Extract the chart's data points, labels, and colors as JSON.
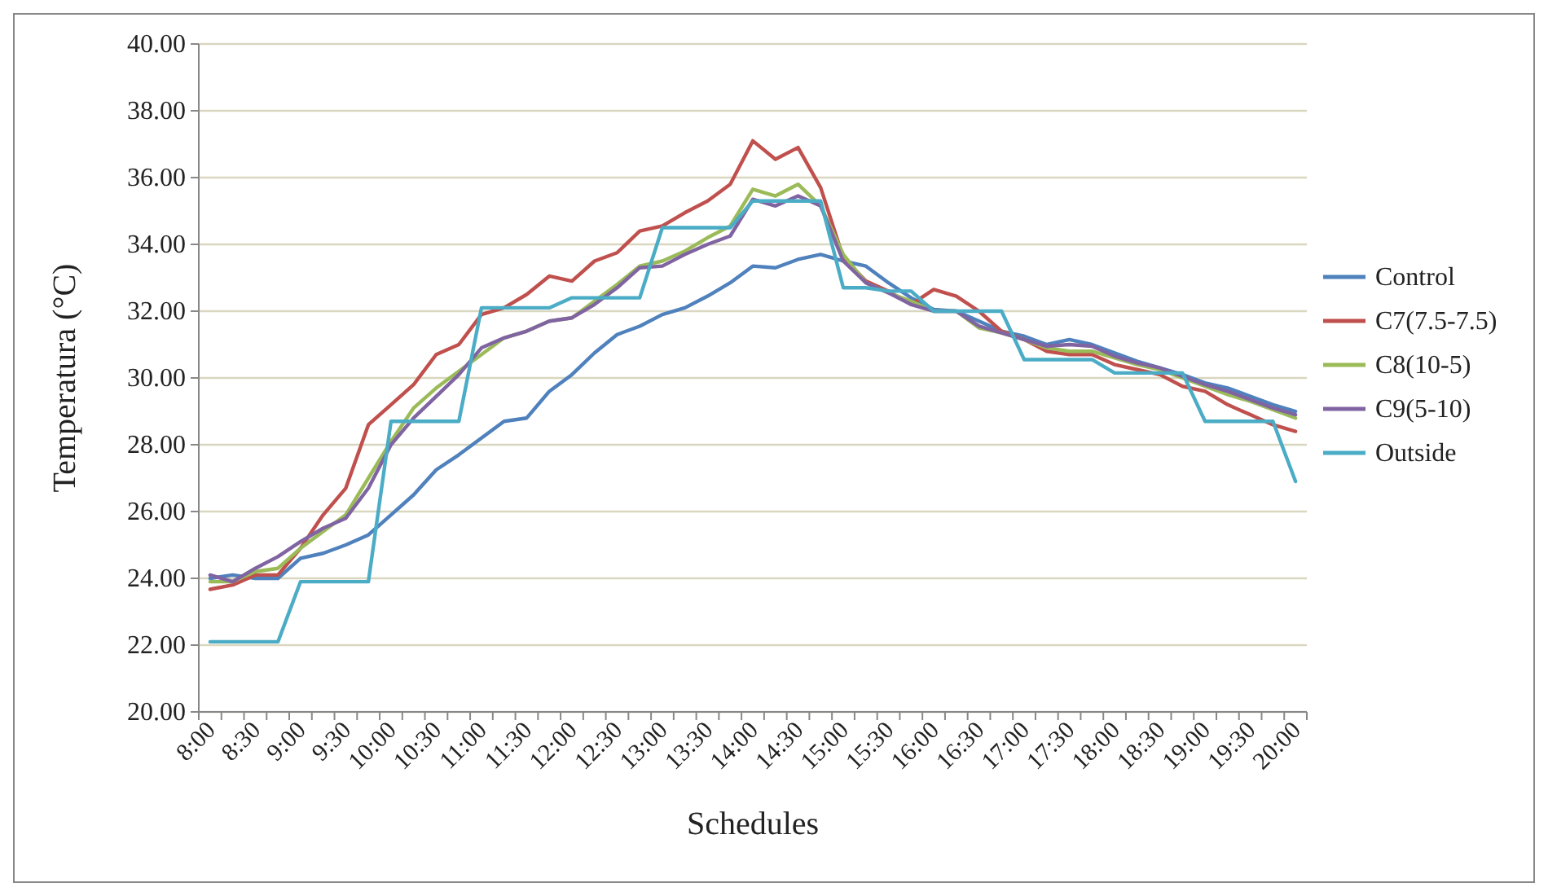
{
  "chart_data": {
    "type": "line",
    "xlabel": "Schedules",
    "ylabel": "Temperatura (°C)",
    "categories": [
      "8:00",
      null,
      "8:30",
      null,
      "9:00",
      null,
      "9:30",
      null,
      "10:00",
      null,
      "10:30",
      null,
      "11:00",
      null,
      "11:30",
      null,
      "12:00",
      null,
      "12:30",
      null,
      "13:00",
      null,
      "13:30",
      null,
      "14:00",
      null,
      "14:30",
      null,
      "15:00",
      null,
      "15:30",
      null,
      "16:00",
      null,
      "16:30",
      null,
      "17:00",
      null,
      "17:30",
      null,
      "18:00",
      null,
      "18:30",
      null,
      "19:00",
      null,
      "19:30",
      null,
      "20:00"
    ],
    "ylim": [
      20,
      40
    ],
    "yticks": [
      {
        "value": 20,
        "label": "20.00"
      },
      {
        "value": 22,
        "label": "22.00"
      },
      {
        "value": 24,
        "label": "24.00"
      },
      {
        "value": 26,
        "label": "26.00"
      },
      {
        "value": 28,
        "label": "28.00"
      },
      {
        "value": 30,
        "label": "30.00"
      },
      {
        "value": 32,
        "label": "32.00"
      },
      {
        "value": 34,
        "label": "34.00"
      },
      {
        "value": 36,
        "label": "36.00"
      },
      {
        "value": 38,
        "label": "38.00"
      },
      {
        "value": 40,
        "label": "40.00"
      }
    ],
    "grid": "y",
    "legend": "right",
    "marker": "none",
    "line_style": "solid",
    "series": [
      {
        "name": "Control",
        "color": "#4f81bd",
        "values": [
          24.0,
          24.1,
          24.0,
          24.0,
          24.6,
          24.75,
          25.0,
          25.3,
          25.9,
          26.5,
          27.25,
          27.7,
          28.2,
          28.7,
          28.8,
          29.6,
          30.1,
          30.75,
          31.3,
          31.55,
          31.9,
          32.1,
          32.45,
          32.85,
          33.35,
          33.3,
          33.55,
          33.7,
          33.5,
          33.35,
          32.85,
          32.4,
          32.05,
          32.0,
          31.7,
          31.4,
          31.25,
          31.0,
          31.15,
          31.0,
          30.75,
          30.5,
          30.3,
          30.1,
          29.85,
          29.7,
          29.45,
          29.2,
          29.0
        ]
      },
      {
        "name": "C7(7.5-7.5)",
        "color": "#c0504d",
        "values": [
          23.67,
          23.8,
          24.1,
          24.1,
          24.9,
          25.9,
          26.7,
          28.6,
          29.2,
          29.8,
          30.7,
          31.0,
          31.9,
          32.1,
          32.5,
          33.05,
          32.9,
          33.5,
          33.75,
          34.4,
          34.55,
          34.95,
          35.3,
          35.8,
          37.1,
          36.55,
          36.9,
          35.7,
          33.6,
          32.9,
          32.6,
          32.2,
          32.65,
          32.45,
          32.0,
          31.4,
          31.15,
          30.8,
          30.7,
          30.7,
          30.4,
          30.25,
          30.1,
          29.75,
          29.6,
          29.2,
          28.9,
          28.6,
          28.4
        ]
      },
      {
        "name": "C8(10-5)",
        "color": "#9bbb59",
        "values": [
          23.9,
          23.9,
          24.2,
          24.3,
          24.9,
          25.4,
          25.9,
          27.0,
          28.1,
          29.1,
          29.7,
          30.2,
          30.7,
          31.2,
          31.4,
          31.7,
          31.8,
          32.3,
          32.8,
          33.35,
          33.5,
          33.8,
          34.2,
          34.55,
          35.65,
          35.45,
          35.8,
          35.15,
          33.7,
          32.85,
          32.55,
          32.3,
          32.0,
          32.0,
          31.5,
          31.35,
          31.15,
          30.9,
          30.8,
          30.8,
          30.6,
          30.4,
          30.25,
          30.0,
          29.75,
          29.5,
          29.3,
          29.05,
          28.8
        ]
      },
      {
        "name": "C9(5-10)",
        "color": "#8064a2",
        "values": [
          24.1,
          23.9,
          24.3,
          24.65,
          25.1,
          25.5,
          25.8,
          26.7,
          28.0,
          28.8,
          29.45,
          30.1,
          30.9,
          31.2,
          31.4,
          31.7,
          31.8,
          32.2,
          32.7,
          33.3,
          33.35,
          33.7,
          34.0,
          34.25,
          35.35,
          35.15,
          35.45,
          35.15,
          33.5,
          32.85,
          32.55,
          32.2,
          32.0,
          32.0,
          31.55,
          31.35,
          31.15,
          30.95,
          31.0,
          30.95,
          30.65,
          30.45,
          30.3,
          30.05,
          29.8,
          29.6,
          29.35,
          29.1,
          28.9
        ]
      },
      {
        "name": "Outside",
        "color": "#4bacc6",
        "values": [
          22.1,
          22.1,
          22.1,
          22.1,
          23.9,
          23.9,
          23.9,
          23.9,
          28.7,
          28.7,
          28.7,
          28.7,
          32.1,
          32.1,
          32.1,
          32.1,
          32.4,
          32.4,
          32.4,
          32.4,
          34.5,
          34.5,
          34.5,
          34.5,
          35.3,
          35.3,
          35.3,
          35.3,
          32.7,
          32.7,
          32.6,
          32.6,
          32.0,
          32.0,
          32.0,
          32.0,
          30.55,
          30.55,
          30.55,
          30.55,
          30.15,
          30.15,
          30.15,
          30.15,
          28.7,
          28.7,
          28.7,
          28.7,
          26.9
        ]
      }
    ]
  }
}
